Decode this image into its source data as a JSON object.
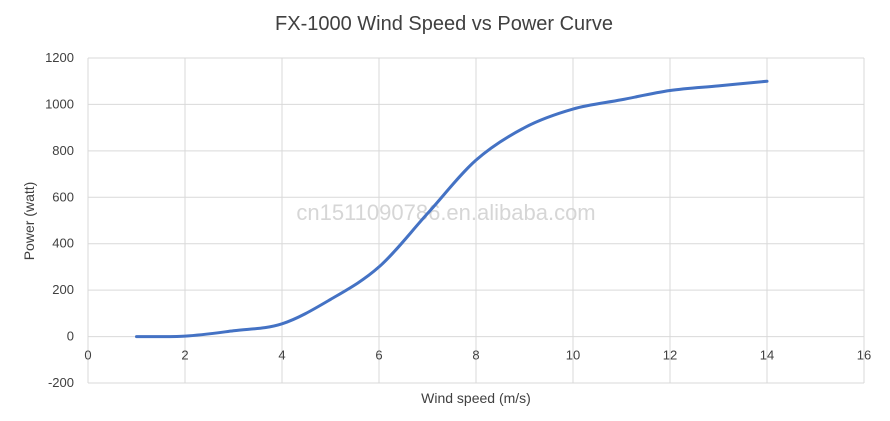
{
  "chart_data": {
    "type": "line",
    "title": "FX-1000 Wind Speed vs Power Curve",
    "xlabel": "Wind speed (m/s)",
    "ylabel": "Power (watt)",
    "xlim": [
      0,
      16
    ],
    "ylim": [
      -200,
      1200
    ],
    "xticks": [
      0,
      2,
      4,
      6,
      8,
      10,
      12,
      14,
      16
    ],
    "yticks": [
      -200,
      0,
      200,
      400,
      600,
      800,
      1000,
      1200
    ],
    "grid": true,
    "legend": "none",
    "series": [
      {
        "color": "#4472c4",
        "x": [
          1,
          2,
          3,
          4,
          5,
          6,
          7,
          8,
          9,
          10,
          11,
          12,
          13,
          14
        ],
        "y": [
          0,
          2,
          25,
          55,
          160,
          300,
          530,
          760,
          900,
          980,
          1020,
          1060,
          1080,
          1100
        ]
      }
    ]
  },
  "watermark": "cn1511090786.en.alibaba.com"
}
